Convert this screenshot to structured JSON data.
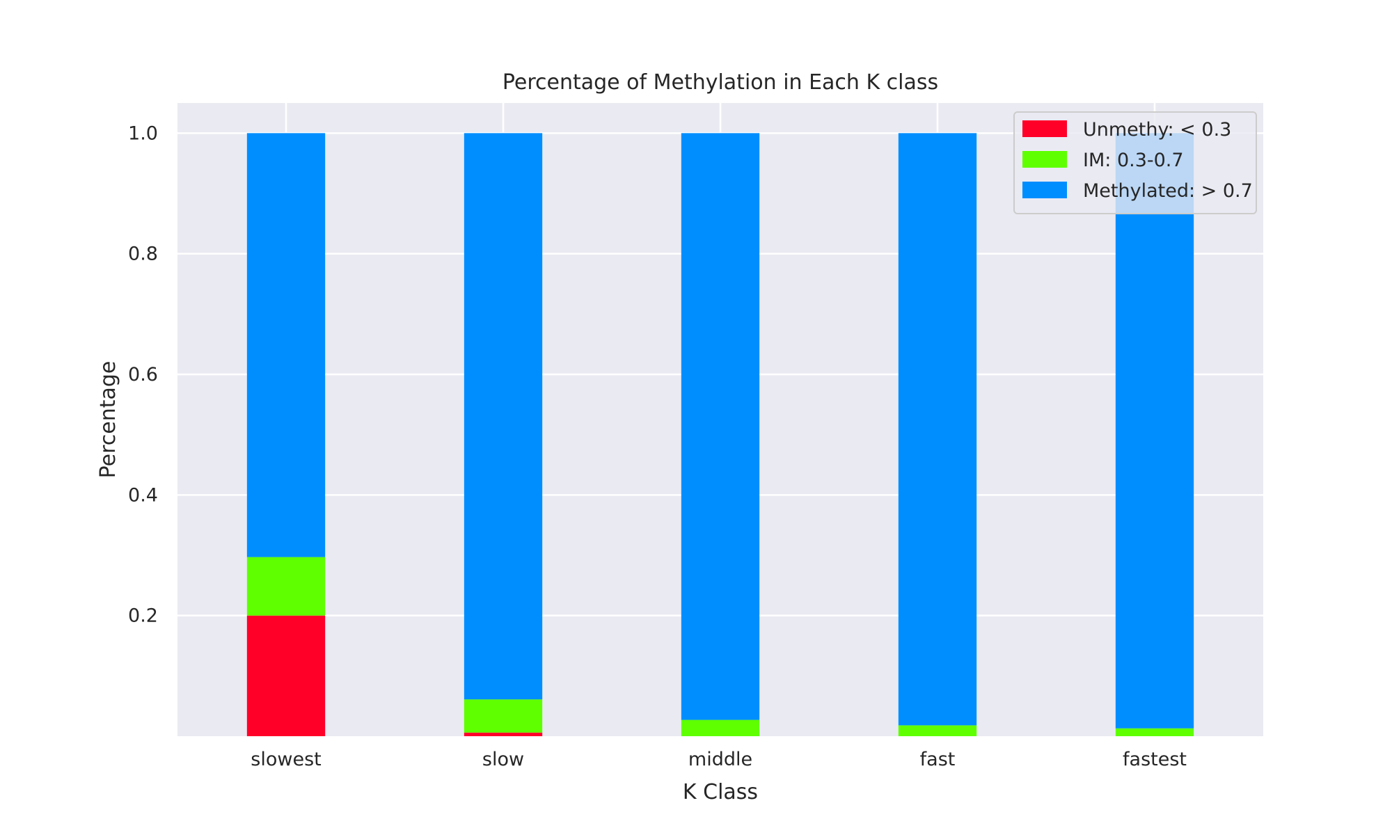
{
  "chart_data": {
    "type": "bar",
    "stacked": true,
    "title": "Percentage of Methylation in Each K class",
    "xlabel": "K Class",
    "ylabel": "Percentage",
    "categories": [
      "slowest",
      "slow",
      "middle",
      "fast",
      "fastest"
    ],
    "series": [
      {
        "name": "Unmethy: < 0.3",
        "color": "#ff0029",
        "values": [
          0.2,
          0.006,
          0.0,
          0.0,
          0.0
        ]
      },
      {
        "name": "IM: 0.3-0.7",
        "color": "#5fff00",
        "values": [
          0.097,
          0.055,
          0.027,
          0.018,
          0.013
        ]
      },
      {
        "name": "Methylated: > 0.7",
        "color": "#008eff",
        "values": [
          0.703,
          0.939,
          0.973,
          0.982,
          0.987
        ]
      }
    ],
    "yticks": [
      0.2,
      0.4,
      0.6,
      0.8,
      1.0
    ],
    "ytick_labels": [
      "0.2",
      "0.4",
      "0.6",
      "0.8",
      "1.0"
    ],
    "ylim": [
      0.0,
      1.05
    ],
    "grid": true,
    "legend_position": "top-right",
    "plot_background": "#eaeaf2",
    "grid_color": "#ffffff"
  }
}
